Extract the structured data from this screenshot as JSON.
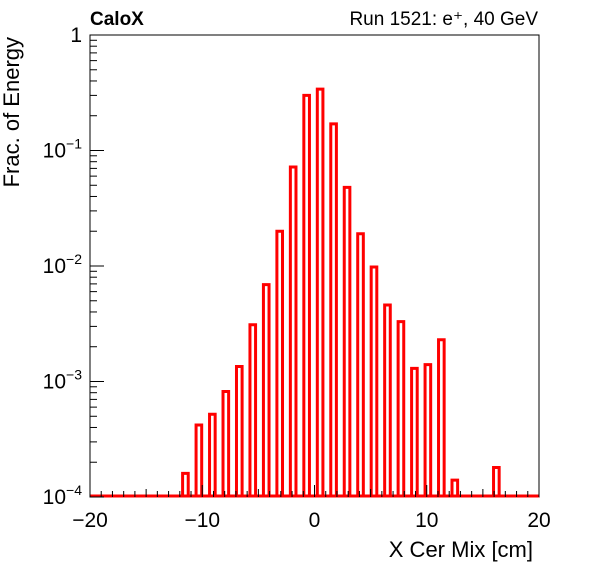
{
  "header": {
    "experiment": "CaloX",
    "run_info": "Run 1521: e⁺, 40 GeV"
  },
  "chart_data": {
    "type": "bar",
    "style": "histogram-step",
    "xlabel": "X Cer Mix [cm]",
    "ylabel": "Frac. of Energy",
    "xlim": [
      -20,
      20
    ],
    "ylim": [
      0.0001,
      1
    ],
    "ylog": true,
    "grid": false,
    "line_color": "#ff0000",
    "bin_width": 0.5,
    "xticks": [
      {
        "value": -20,
        "label": "−20"
      },
      {
        "value": -10,
        "label": "−10"
      },
      {
        "value": 0,
        "label": "0"
      },
      {
        "value": 10,
        "label": "10"
      },
      {
        "value": 20,
        "label": "20"
      }
    ],
    "yticks": [
      {
        "value": 1,
        "base": "1",
        "exp": ""
      },
      {
        "value": 0.1,
        "base": "10",
        "exp": "−1"
      },
      {
        "value": 0.01,
        "base": "10",
        "exp": "−2"
      },
      {
        "value": 0.001,
        "base": "10",
        "exp": "−3"
      },
      {
        "value": 0.0001,
        "base": "10",
        "exp": "−4"
      }
    ],
    "bins": [
      {
        "x": -11.5,
        "y": 0.00016
      },
      {
        "x": -10.3,
        "y": 0.00042
      },
      {
        "x": -9.1,
        "y": 0.00052
      },
      {
        "x": -7.9,
        "y": 0.00082
      },
      {
        "x": -6.7,
        "y": 0.00135
      },
      {
        "x": -5.5,
        "y": 0.0031
      },
      {
        "x": -4.3,
        "y": 0.0069
      },
      {
        "x": -3.1,
        "y": 0.02
      },
      {
        "x": -1.9,
        "y": 0.072
      },
      {
        "x": -0.7,
        "y": 0.3
      },
      {
        "x": 0.5,
        "y": 0.34
      },
      {
        "x": 1.7,
        "y": 0.17
      },
      {
        "x": 2.9,
        "y": 0.048
      },
      {
        "x": 4.1,
        "y": 0.019
      },
      {
        "x": 5.3,
        "y": 0.0098
      },
      {
        "x": 6.5,
        "y": 0.0046
      },
      {
        "x": 7.7,
        "y": 0.0033
      },
      {
        "x": 8.9,
        "y": 0.0013
      },
      {
        "x": 10.1,
        "y": 0.0014
      },
      {
        "x": 11.3,
        "y": 0.0023
      },
      {
        "x": 12.5,
        "y": 0.00014
      },
      {
        "x": 16.2,
        "y": 0.00018
      }
    ]
  }
}
